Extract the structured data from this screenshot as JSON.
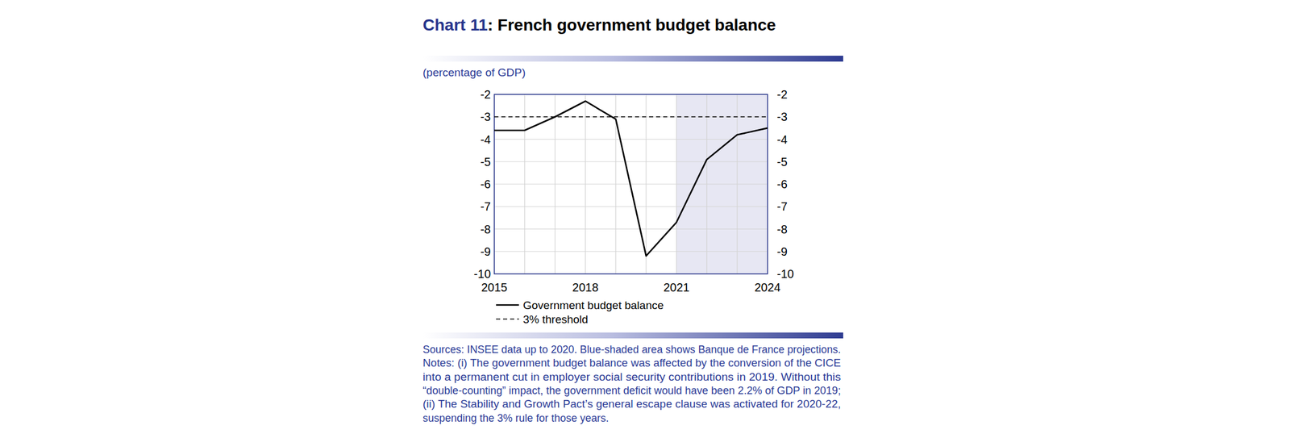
{
  "chart_data": {
    "type": "line",
    "title": "Chart 11: French government budget balance",
    "y_label": "(percentage of GDP)",
    "categories": [
      "2015",
      null,
      null,
      "2018",
      null,
      null,
      "2021",
      null,
      null,
      "2024"
    ],
    "series": [
      {
        "name": "Government budget balance",
        "color": "#000000",
        "line_style": "solid",
        "values": [
          -3.6,
          -3.6,
          -3.0,
          -2.3,
          -3.1,
          -9.2,
          -7.7,
          -4.9,
          -3.8,
          -3.5
        ]
      },
      {
        "name": "3% threshold",
        "color": "#000000",
        "line_style": "dashed",
        "values": [
          -3,
          -3,
          -3,
          -3,
          -3,
          -3,
          -3,
          -3,
          -3,
          -3
        ]
      }
    ],
    "ylim": [
      -10,
      -2
    ],
    "yticks": [
      -2,
      -3,
      -4,
      -5,
      -6,
      -7,
      -8,
      -9,
      -10
    ],
    "grid": true,
    "legend": "bottom",
    "shaded_range": [
      "2021",
      "2024"
    ],
    "source": "Sources: INSEE data up to 2020. Blue-shaded area shows Banque de France projections.",
    "notes": [
      "Notes: (i) The government budget balance was affected by the conversion of the CICE",
      "into a permanent cut in employer social security contributions in 2019. Without this",
      "“double-counting” impact, the government deficit would have been 2.2% of GDP in 2019;",
      "(ii) The Stability and Growth Pact’s general escape clause was activated for 2020-22,",
      "suspending the 3% rule for those years."
    ]
  }
}
